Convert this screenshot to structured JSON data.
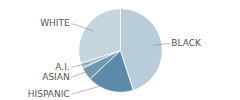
{
  "chart_data": {
    "type": "pie",
    "categories": [
      "WHITE",
      "A.I.",
      "ASIAN",
      "HISPANIC",
      "BLACK"
    ],
    "values": [
      30,
      2,
      5,
      18,
      45
    ],
    "colors": [
      "#c5d5e0",
      "#a8bfcc",
      "#7098b0",
      "#5b8aab",
      "#b8cdd8"
    ]
  }
}
